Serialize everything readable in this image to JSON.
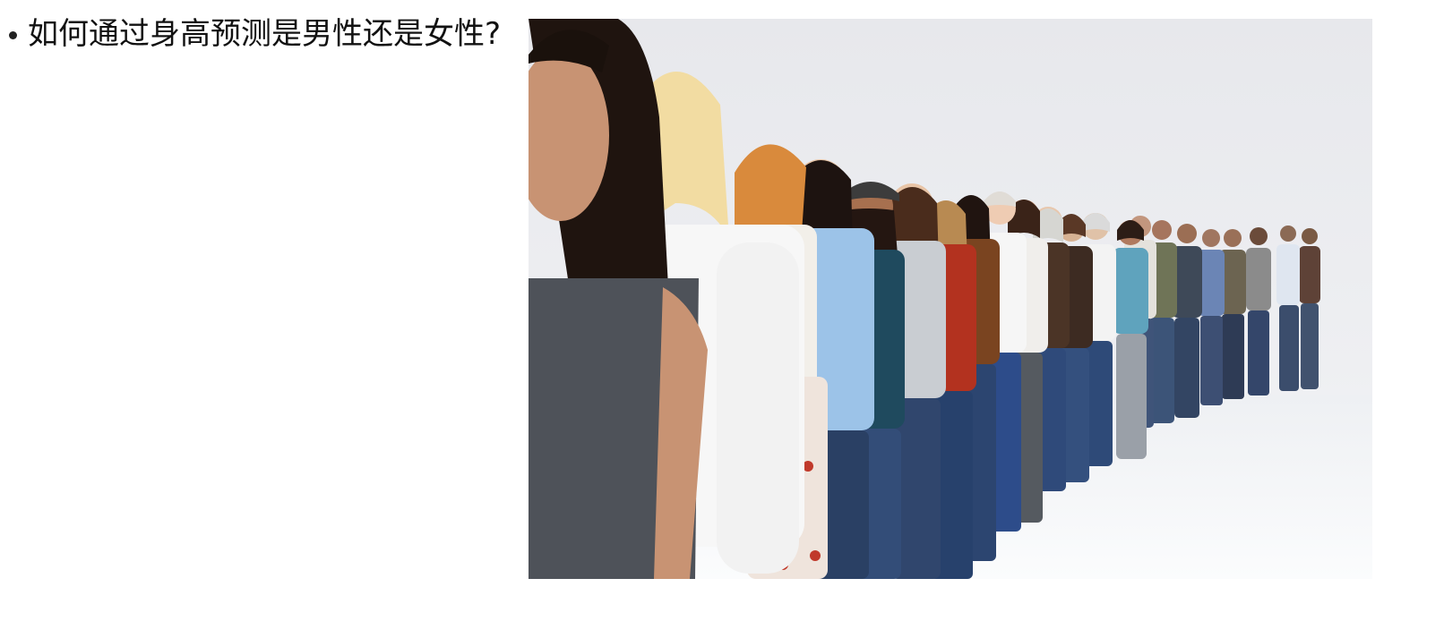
{
  "slide": {
    "bullet_text": "如何通过身高预测是男性还是女性?",
    "photo_name": "people-standing-in-line-photo"
  }
}
